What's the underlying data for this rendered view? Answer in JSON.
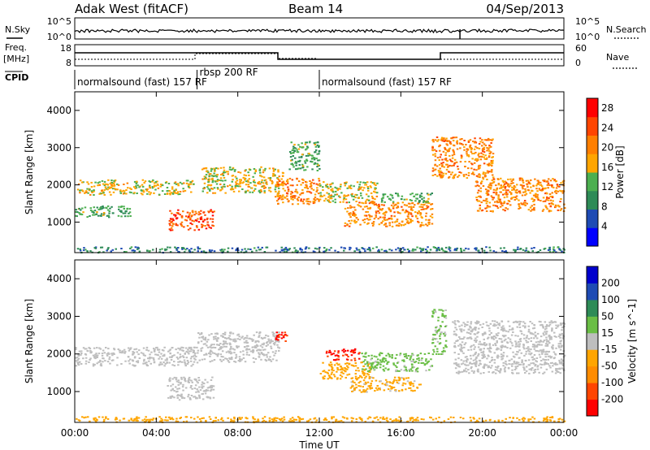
{
  "header": {
    "station": "Adak West (fitACF)",
    "beam": "Beam 14",
    "date": "04/Sep/2013"
  },
  "panels": {
    "nsky_label": "N.Sky",
    "nsearch_label": "N.Search",
    "freq_label": "Freq.",
    "freq_unit": "[MHz]",
    "nave_label": "Nave",
    "cpid_label": "CPID",
    "nsky_ticks": [
      "10^5",
      "10^0"
    ],
    "nsearch_ticks": [
      "10^5",
      "10^0"
    ],
    "freq_ticks": [
      "18",
      "8"
    ],
    "nave_ticks": [
      "60",
      "0"
    ]
  },
  "cpid_segments": [
    {
      "label": "normalsound (fast) 157 RF",
      "start": "00:00",
      "end": "06:00"
    },
    {
      "label": "rbsp 200 RF",
      "start": "06:00",
      "end": "12:00"
    },
    {
      "label": "normalsound (fast) 157 RF",
      "start": "12:00",
      "end": "24:00"
    }
  ],
  "colors": {
    "power": [
      "#0000ff",
      "#1e4bb4",
      "#2e8b57",
      "#4caf50",
      "#ffa500",
      "#ff7f00",
      "#ff4500",
      "#ff0000"
    ],
    "velocity": [
      "#ff0000",
      "#ff4500",
      "#ff8c00",
      "#ffa500",
      "#bebebe",
      "#6abe45",
      "#2e8b57",
      "#1e4bb4",
      "#0000cd"
    ]
  },
  "chart_data": [
    {
      "type": "heatmap",
      "title": "Power",
      "xlabel": "Time UT",
      "ylabel": "Slant Range [km]",
      "x_ticks": [
        "00:00",
        "04:00",
        "08:00",
        "12:00",
        "16:00",
        "20:00",
        "00:00"
      ],
      "y_ticks": [
        "1000",
        "2000",
        "3000",
        "4000"
      ],
      "xlim_hours": [
        0,
        24
      ],
      "ylim_km": [
        180,
        4500
      ],
      "colorbar_label": "Power [dB]",
      "colorbar_ticks": [
        "4",
        "8",
        "12",
        "16",
        "20",
        "24",
        "28"
      ],
      "clim": [
        0,
        30
      ],
      "regions": [
        {
          "t0": 0.0,
          "t1": 5.8,
          "r0": 1750,
          "r1": 2150,
          "level": 16
        },
        {
          "t0": 0.0,
          "t1": 2.8,
          "r0": 1150,
          "r1": 1450,
          "level": 12
        },
        {
          "t0": 4.6,
          "t1": 6.8,
          "r0": 800,
          "r1": 1350,
          "level": 24
        },
        {
          "t0": 6.2,
          "t1": 10.2,
          "r0": 1800,
          "r1": 2500,
          "level": 16
        },
        {
          "t0": 9.8,
          "t1": 12.0,
          "r0": 1500,
          "r1": 2200,
          "level": 20
        },
        {
          "t0": 10.5,
          "t1": 12.0,
          "r0": 2400,
          "r1": 3200,
          "level": 12
        },
        {
          "t0": 12.0,
          "t1": 14.8,
          "r0": 1550,
          "r1": 2100,
          "level": 16
        },
        {
          "t0": 13.2,
          "t1": 17.5,
          "r0": 900,
          "r1": 1550,
          "level": 20
        },
        {
          "t0": 15.0,
          "t1": 17.5,
          "r0": 1550,
          "r1": 1800,
          "level": 12
        },
        {
          "t0": 17.5,
          "t1": 20.5,
          "r0": 2200,
          "r1": 3300,
          "level": 20
        },
        {
          "t0": 19.6,
          "t1": 24.0,
          "r0": 1300,
          "r1": 2200,
          "level": 20
        },
        {
          "t0": 0.0,
          "t1": 24.0,
          "r0": 200,
          "r1": 350,
          "level": 8
        }
      ]
    },
    {
      "type": "heatmap",
      "title": "Velocity",
      "xlabel": "Time UT",
      "ylabel": "Slant Range [km]",
      "x_ticks": [
        "00:00",
        "04:00",
        "08:00",
        "12:00",
        "16:00",
        "20:00",
        "00:00"
      ],
      "y_ticks": [
        "1000",
        "2000",
        "3000",
        "4000"
      ],
      "xlim_hours": [
        0,
        24
      ],
      "ylim_km": [
        180,
        4500
      ],
      "colorbar_label": "Velocity [m s^-1]",
      "colorbar_ticks": [
        "200",
        "100",
        "50",
        "15",
        "-15",
        "-50",
        "-100",
        "-200"
      ],
      "clim": [
        -250,
        250
      ],
      "regions": [
        {
          "t0": 0.0,
          "t1": 6.0,
          "r0": 1700,
          "r1": 2200,
          "level": 0
        },
        {
          "t0": 4.5,
          "t1": 6.8,
          "r0": 800,
          "r1": 1400,
          "level": 0
        },
        {
          "t0": 6.0,
          "t1": 10.0,
          "r0": 1800,
          "r1": 2600,
          "level": 0
        },
        {
          "t0": 9.8,
          "t1": 10.4,
          "r0": 2300,
          "r1": 2600,
          "level": -200
        },
        {
          "t0": 12.3,
          "t1": 14.0,
          "r0": 1850,
          "r1": 2150,
          "level": -200
        },
        {
          "t0": 12.0,
          "t1": 14.5,
          "r0": 1350,
          "r1": 1800,
          "level": -60
        },
        {
          "t0": 13.5,
          "t1": 17.0,
          "r0": 1000,
          "r1": 1400,
          "level": -40
        },
        {
          "t0": 14.0,
          "t1": 17.5,
          "r0": 1550,
          "r1": 2050,
          "level": 40
        },
        {
          "t0": 17.5,
          "t1": 18.2,
          "r0": 2000,
          "r1": 3200,
          "level": 40
        },
        {
          "t0": 18.5,
          "t1": 24.0,
          "r0": 1500,
          "r1": 2900,
          "level": 0
        },
        {
          "t0": 0.0,
          "t1": 24.0,
          "r0": 200,
          "r1": 350,
          "level": -60
        }
      ]
    }
  ]
}
